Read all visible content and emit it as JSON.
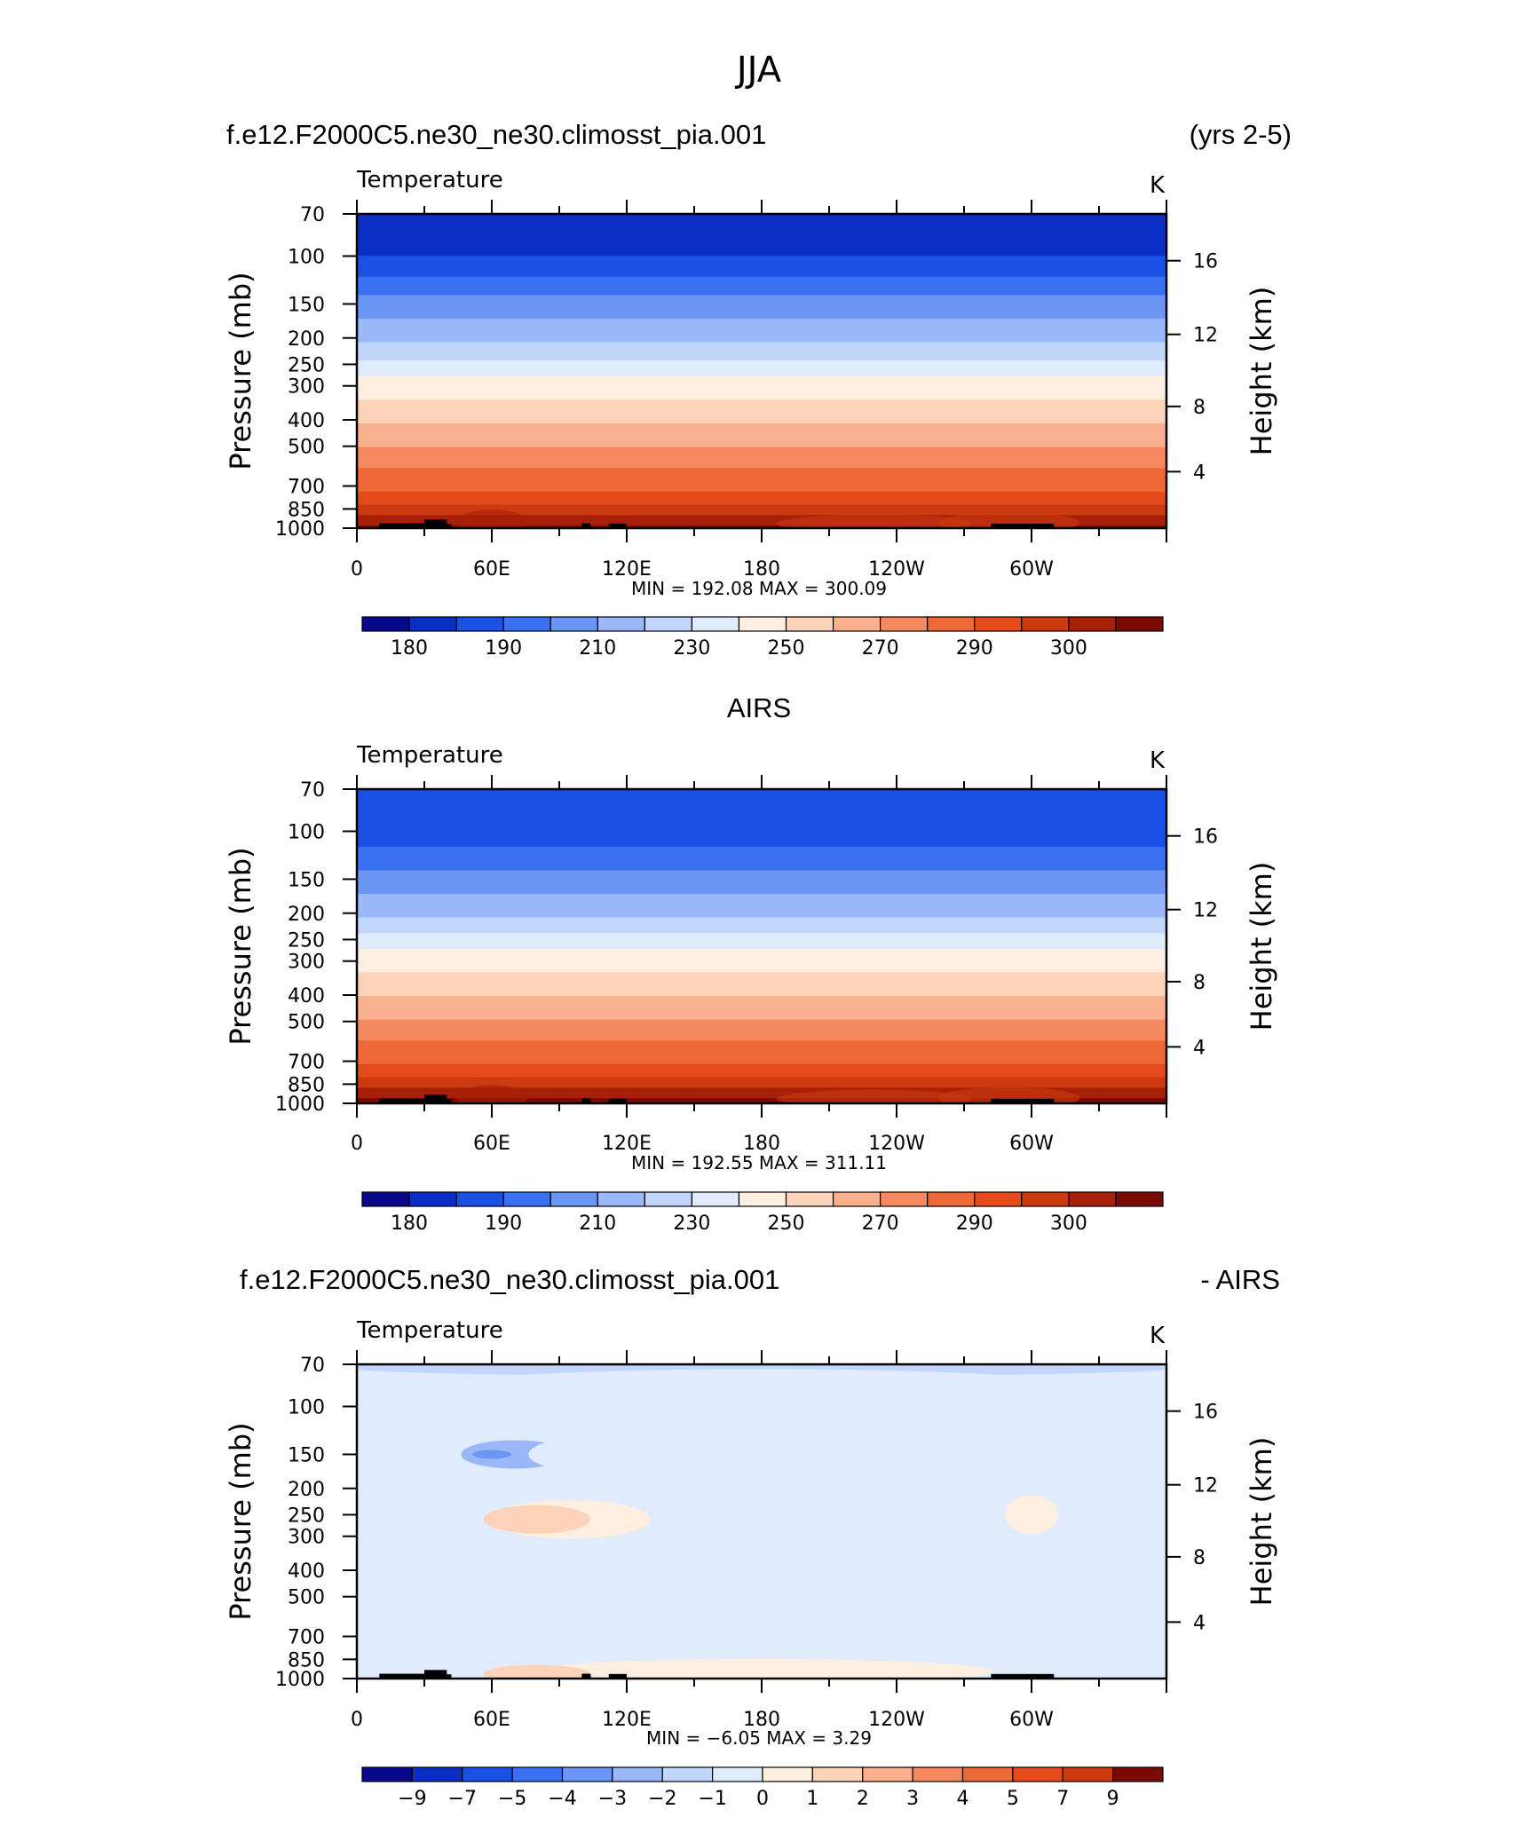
{
  "figure": {
    "title": "JJA",
    "case_name": "f.e12.F2000C5.ne30_ne30.climosst_pia.001",
    "years": "(yrs 2-5)",
    "obs_title": "AIRS",
    "diff_case": "f.e12.F2000C5.ne30_ne30.climosst_pia.001",
    "diff_suffix": "- AIRS"
  },
  "colors": {
    "abs_palette": [
      "#08088c",
      "#0b2ec4",
      "#1a50e6",
      "#3a70f2",
      "#6c96f5",
      "#9ab8f8",
      "#c2d6fb",
      "#e0ecfd",
      "#fdeee0",
      "#fcd2b8",
      "#f9b08e",
      "#f58a60",
      "#ee6838",
      "#e64b1c",
      "#cc3a10",
      "#a82008",
      "#7a0a04"
    ],
    "diff_palette": [
      "#08088c",
      "#0b2ec4",
      "#1a50e6",
      "#3a70f2",
      "#6c96f5",
      "#9ab8f8",
      "#c2d6fb",
      "#e0ecfd",
      "#fdeee0",
      "#fcd2b8",
      "#f9b08e",
      "#f58a60",
      "#ee6838",
      "#e64b1c",
      "#cc3a10",
      "#7a0a04"
    ],
    "topo": "#000000"
  },
  "chart_data": [
    {
      "type": "heatmap",
      "panel_label": "Temperature",
      "units": "K",
      "x_ticks": [
        "0",
        "60E",
        "120E",
        "180",
        "120W",
        "60W"
      ],
      "x_range": [
        0,
        360
      ],
      "y_ticks": [
        "70",
        "100",
        "150",
        "200",
        "250",
        "300",
        "400",
        "500",
        "700",
        "850",
        "1000"
      ],
      "y_range_mb": [
        70,
        1000
      ],
      "y_label": "Pressure  (mb)",
      "y2_ticks": [
        "16",
        "12",
        "8",
        "4"
      ],
      "y2_label": "Height  (km)",
      "min_max": "MIN  =  192.08   MAX  =  300.09",
      "colorbar_labels": [
        "180",
        "190",
        "210",
        "230",
        "250",
        "270",
        "290",
        "300"
      ],
      "levels_K": [
        195,
        200,
        205,
        210,
        215,
        220,
        225,
        230,
        240,
        250,
        260,
        270,
        280,
        285,
        290,
        295
      ],
      "profile_mb": [
        [
          70,
          196
        ],
        [
          100,
          200
        ],
        [
          150,
          212
        ],
        [
          200,
          219
        ],
        [
          250,
          226
        ],
        [
          300,
          234
        ],
        [
          400,
          248
        ],
        [
          500,
          260
        ],
        [
          700,
          278
        ],
        [
          850,
          287
        ],
        [
          1000,
          296
        ]
      ]
    },
    {
      "type": "heatmap",
      "panel_label": "Temperature",
      "units": "K",
      "x_ticks": [
        "0",
        "60E",
        "120E",
        "180",
        "120W",
        "60W"
      ],
      "x_range": [
        0,
        360
      ],
      "y_ticks": [
        "70",
        "100",
        "150",
        "200",
        "250",
        "300",
        "400",
        "500",
        "700",
        "850",
        "1000"
      ],
      "y_range_mb": [
        70,
        1000
      ],
      "y_label": "Pressure  (mb)",
      "y2_ticks": [
        "16",
        "12",
        "8",
        "4"
      ],
      "y2_label": "Height  (km)",
      "min_max": "MIN  =  192.55   MAX  =  311.11",
      "colorbar_labels": [
        "180",
        "190",
        "210",
        "230",
        "250",
        "270",
        "290",
        "300"
      ],
      "levels_K": [
        195,
        200,
        205,
        210,
        215,
        220,
        225,
        230,
        240,
        250,
        260,
        270,
        280,
        285,
        290,
        295
      ],
      "profile_mb": [
        [
          70,
          200
        ],
        [
          100,
          202
        ],
        [
          150,
          212
        ],
        [
          200,
          219
        ],
        [
          250,
          227
        ],
        [
          300,
          235
        ],
        [
          400,
          249
        ],
        [
          500,
          261
        ],
        [
          700,
          279
        ],
        [
          850,
          288
        ],
        [
          1000,
          298
        ]
      ]
    },
    {
      "type": "heatmap",
      "panel_label": "Temperature",
      "units": "K",
      "x_ticks": [
        "0",
        "60E",
        "120E",
        "180",
        "120W",
        "60W"
      ],
      "x_range": [
        0,
        360
      ],
      "y_ticks": [
        "70",
        "100",
        "150",
        "200",
        "250",
        "300",
        "400",
        "500",
        "700",
        "850",
        "1000"
      ],
      "y_range_mb": [
        70,
        1000
      ],
      "y_label": "Pressure  (mb)",
      "y2_ticks": [
        "16",
        "12",
        "8",
        "4"
      ],
      "y2_label": "Height  (km)",
      "min_max": "MIN  =    −6.05   MAX  =      3.29",
      "colorbar_labels": [
        "−9",
        "−7",
        "−5",
        "−4",
        "−3",
        "−2",
        "−1",
        "0",
        "1",
        "2",
        "3",
        "4",
        "5",
        "7",
        "9"
      ],
      "levels_K": [
        -10,
        -8,
        -6,
        -4.5,
        -3.5,
        -2.5,
        -1.5,
        -0.5,
        0.5,
        1.5,
        2.5,
        3.5,
        4.5,
        6,
        8
      ],
      "background_diff_K": -0.9
    }
  ]
}
